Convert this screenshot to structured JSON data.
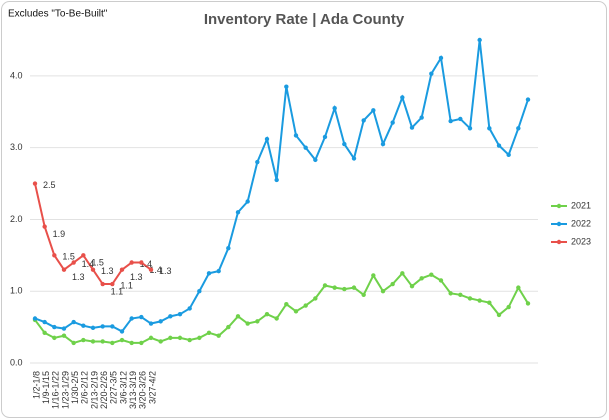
{
  "chart_data": {
    "type": "line",
    "title": "Inventory Rate | Ada County",
    "subtitle": "Excludes \"To-Be-Built\"",
    "categories": [
      "1/2-1/8",
      "1/9-1/15",
      "1/16-1/22",
      "1/23-1/29",
      "1/30-2/5",
      "2/6-2/12",
      "2/13-2/19",
      "2/20-2/26",
      "2/27-3/5",
      "3/6-3/12",
      "3/13-3/19",
      "3/20-3/26",
      "3/27-4/2",
      null,
      null,
      null,
      null,
      null,
      null,
      null,
      null,
      null,
      null,
      null,
      null,
      null,
      null,
      null,
      null,
      null,
      null,
      null,
      null,
      null,
      null,
      null,
      null,
      null,
      null,
      null,
      null,
      null,
      null,
      null,
      null,
      null,
      null,
      null,
      null,
      null,
      null,
      null
    ],
    "series": [
      {
        "name": "2021",
        "color": "#6fd14a",
        "values": [
          0.6,
          0.42,
          0.35,
          0.38,
          0.28,
          0.32,
          0.3,
          0.3,
          0.28,
          0.32,
          0.28,
          0.28,
          0.35,
          0.3,
          0.35,
          0.35,
          0.32,
          0.35,
          0.42,
          0.38,
          0.5,
          0.65,
          0.55,
          0.58,
          0.68,
          0.62,
          0.82,
          0.72,
          0.8,
          0.9,
          1.08,
          1.05,
          1.03,
          1.05,
          0.95,
          1.22,
          1.0,
          1.1,
          1.25,
          1.07,
          1.18,
          1.23,
          1.15,
          0.97,
          0.95,
          0.9,
          0.87,
          0.84,
          0.67,
          0.78,
          1.05,
          0.83
        ]
      },
      {
        "name": "2022",
        "color": "#1a9be0",
        "values": [
          0.62,
          0.57,
          0.5,
          0.48,
          0.57,
          0.52,
          0.49,
          0.51,
          0.51,
          0.44,
          0.62,
          0.64,
          0.55,
          0.58,
          0.65,
          0.68,
          0.76,
          1.0,
          1.25,
          1.28,
          1.6,
          2.1,
          2.25,
          2.8,
          3.12,
          2.55,
          3.85,
          3.17,
          3.0,
          2.83,
          3.15,
          3.55,
          3.05,
          2.85,
          3.38,
          3.52,
          3.05,
          3.35,
          3.7,
          3.28,
          3.42,
          4.03,
          4.25,
          3.37,
          3.4,
          3.27,
          4.5,
          3.27,
          3.03,
          2.9,
          3.27,
          3.67
        ]
      },
      {
        "name": "2023",
        "color": "#e8504a",
        "data_labels": true,
        "values": [
          2.5,
          1.9,
          1.5,
          1.3,
          1.4,
          1.5,
          1.3,
          1.1,
          1.1,
          1.3,
          1.4,
          1.4,
          1.3,
          null,
          null,
          null,
          null,
          null,
          null,
          null,
          null,
          null,
          null,
          null,
          null,
          null,
          null,
          null,
          null,
          null,
          null,
          null,
          null,
          null,
          null,
          null,
          null,
          null,
          null,
          null,
          null,
          null,
          null,
          null,
          null,
          null,
          null,
          null,
          null,
          null,
          null,
          null
        ]
      }
    ],
    "ylim": [
      0,
      4.5
    ],
    "yticks": [
      {
        "value": 0,
        "label": "0.0"
      },
      {
        "value": 1,
        "label": "1.0"
      },
      {
        "value": 2,
        "label": "2.0"
      },
      {
        "value": 3,
        "label": "3.0"
      },
      {
        "value": 4,
        "label": "4.0"
      }
    ],
    "grid": true,
    "legend": "right"
  }
}
